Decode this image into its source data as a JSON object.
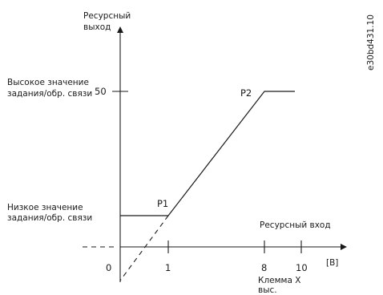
{
  "figure_id": "e30bd431.10",
  "y_axis": {
    "title_line1": "Ресурсный",
    "title_line2": "выход",
    "tick_50": "50",
    "high_label_line1": "Высокое значение",
    "high_label_line2": "задания/обр. связи",
    "low_label_line1": "Низкое значение",
    "low_label_line2": "задания/обр. связи"
  },
  "x_axis": {
    "title": "Ресурсный вход",
    "unit": "[В]",
    "tick_0": "0",
    "tick_1": "1",
    "tick_8": "8",
    "tick_10": "10",
    "terminal_line1": "Клемма X",
    "terminal_line2": "выс."
  },
  "points": {
    "p1": "P1",
    "p2": "P2"
  }
}
